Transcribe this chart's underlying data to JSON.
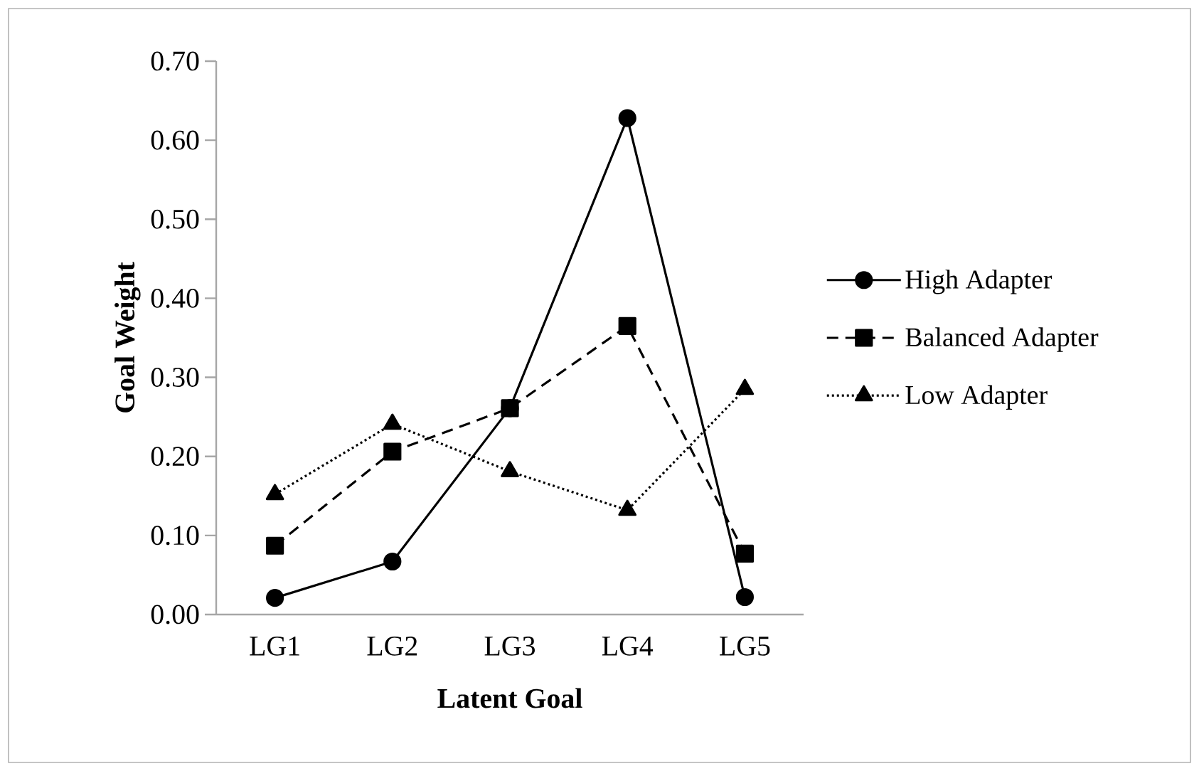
{
  "chart_data": {
    "type": "line",
    "xlabel": "Latent Goal",
    "ylabel": "Goal Weight",
    "categories": [
      "LG1",
      "LG2",
      "LG3",
      "LG4",
      "LG5"
    ],
    "series": [
      {
        "name": "High Adapter",
        "color": "#000000",
        "marker": "circle",
        "line_style": "solid",
        "values": [
          0.021,
          0.067,
          0.261,
          0.628,
          0.022
        ]
      },
      {
        "name": "Balanced Adapter",
        "color": "#000000",
        "marker": "square",
        "line_style": "dashed",
        "values": [
          0.087,
          0.206,
          0.261,
          0.365,
          0.077
        ]
      },
      {
        "name": "Low Adapter",
        "color": "#000000",
        "marker": "triangle",
        "line_style": "dotted",
        "values": [
          0.152,
          0.241,
          0.181,
          0.132,
          0.285
        ]
      }
    ],
    "ylim": [
      0,
      0.7
    ],
    "yticks": [
      {
        "value": 0,
        "label": "0.00"
      },
      {
        "value": 0.1,
        "label": "0.10"
      },
      {
        "value": 0.2,
        "label": "0.20"
      },
      {
        "value": 0.3,
        "label": "0.30"
      },
      {
        "value": 0.4,
        "label": "0.40"
      },
      {
        "value": 0.5,
        "label": "0.50"
      },
      {
        "value": 0.6,
        "label": "0.60"
      },
      {
        "value": 0.7,
        "label": "0.70"
      }
    ],
    "grid": false,
    "legend": "right"
  }
}
